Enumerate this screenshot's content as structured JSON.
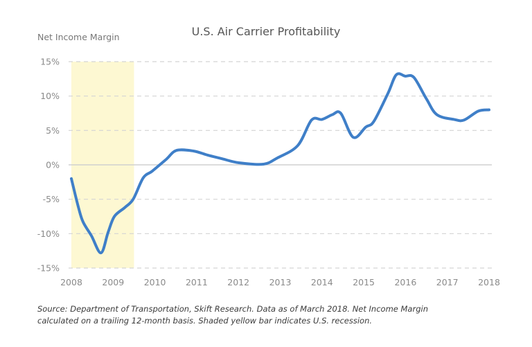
{
  "chart_data": {
    "type": "line",
    "title": "U.S. Air Carrier Profitability",
    "ylabel": "Net Income Margin",
    "xlabel": "",
    "xlim": [
      2008,
      2018
    ],
    "ylim": [
      -15,
      15
    ],
    "x_ticks": [
      "2008",
      "2009",
      "2010",
      "2011",
      "2012",
      "2013",
      "2014",
      "2015",
      "2016",
      "2017",
      "2018"
    ],
    "y_ticks": [
      "15%",
      "10%",
      "5%",
      "0%",
      "-5%",
      "-10%",
      "-15%"
    ],
    "y_tick_values": [
      15,
      10,
      5,
      0,
      -5,
      -10,
      -15
    ],
    "grid": "horizontal-dashed",
    "legend": "none",
    "shaded_region": {
      "label": "U.S. recession",
      "x_start": 2008.0,
      "x_end": 2009.5,
      "color": "#fdf8d2"
    },
    "series": [
      {
        "name": "Net Income Margin",
        "color": "#3f7fc8",
        "x": [
          2008.0,
          2008.17,
          2008.28,
          2008.48,
          2008.71,
          2008.88,
          2009.03,
          2009.28,
          2009.48,
          2009.72,
          2009.94,
          2010.27,
          2010.52,
          2010.93,
          2011.27,
          2011.6,
          2012.01,
          2012.6,
          2012.93,
          2013.42,
          2013.75,
          2014.0,
          2014.25,
          2014.45,
          2014.75,
          2015.05,
          2015.24,
          2015.58,
          2015.78,
          2015.99,
          2016.2,
          2016.5,
          2016.75,
          2017.16,
          2017.4,
          2017.74,
          2018.0
        ],
        "values": [
          -2.0,
          -6.2,
          -8.3,
          -10.3,
          -12.8,
          -9.8,
          -7.5,
          -6.2,
          -5.0,
          -1.9,
          -0.9,
          0.8,
          2.1,
          2.0,
          1.4,
          0.9,
          0.3,
          0.1,
          1.0,
          2.8,
          6.5,
          6.6,
          7.3,
          7.5,
          4.0,
          5.5,
          6.3,
          10.4,
          13.1,
          12.9,
          12.7,
          9.6,
          7.3,
          6.6,
          6.5,
          7.8,
          8.0
        ]
      }
    ]
  },
  "footnote": {
    "line1": "Source: Department of Transportation, Skift Research. Data as of March 2018. Net Income Margin",
    "line2": "calculated on a trailing 12-month basis. Shaded yellow bar indicates U.S. recession."
  }
}
